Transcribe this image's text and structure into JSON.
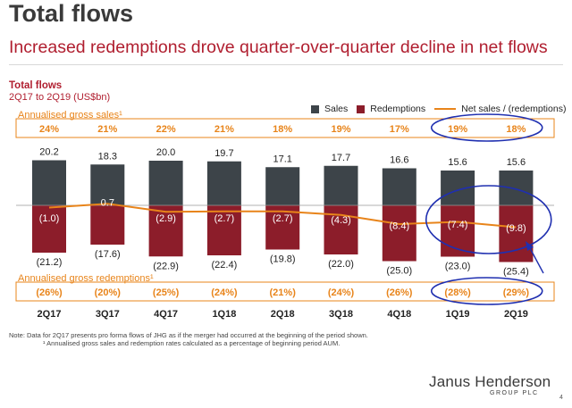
{
  "slide": {
    "title": "Total flows",
    "subtitle": "Increased redemptions drove quarter-over-quarter decline in net flows",
    "chart_title": "Total flows",
    "chart_subtitle": "2Q17 to 2Q19 (US$bn)",
    "gross_sales_label": "Annualised gross sales¹",
    "gross_redemptions_label": "Annualised gross redemptions¹",
    "note_line1": "Note:   Data for 2Q17 presents pro forma flows of JHG as if the merger had occurred at the beginning of the period shown.",
    "note_line2": "¹ Annualised gross sales and redemption rates calculated as a percentage of beginning period AUM.",
    "logo_main": "Janus Henderson",
    "logo_sub": "GROUP PLC",
    "page_number": "4"
  },
  "legend": {
    "sales": "Sales",
    "redemptions": "Redemptions",
    "net": "Net sales / (redemptions)"
  },
  "colors": {
    "sales": "#3d4449",
    "redemptions": "#8c1d2a",
    "net": "#e8841a",
    "accent": "#b01e2f",
    "highlight": "#1f2fb0"
  },
  "chart_data": {
    "type": "bar",
    "categories": [
      "2Q17",
      "3Q17",
      "4Q17",
      "1Q18",
      "2Q18",
      "3Q18",
      "4Q18",
      "1Q19",
      "2Q19"
    ],
    "series": [
      {
        "name": "Sales",
        "values": [
          20.2,
          18.3,
          20.0,
          19.7,
          17.1,
          17.7,
          16.6,
          15.6,
          15.6
        ]
      },
      {
        "name": "Redemptions",
        "values": [
          -21.2,
          -17.6,
          -22.9,
          -22.4,
          -19.8,
          -22.0,
          -25.0,
          -23.0,
          -25.4
        ]
      },
      {
        "name": "Net sales / (redemptions)",
        "values": [
          -1.0,
          0.7,
          -2.9,
          -2.7,
          -2.7,
          -4.3,
          -8.4,
          -7.4,
          -9.8
        ]
      }
    ],
    "sales_labels": [
      "20.2",
      "18.3",
      "20.0",
      "19.7",
      "17.1",
      "17.7",
      "16.6",
      "15.6",
      "15.6"
    ],
    "redemption_labels": [
      "(21.2)",
      "(17.6)",
      "(22.9)",
      "(22.4)",
      "(19.8)",
      "(22.0)",
      "(25.0)",
      "(23.0)",
      "(25.4)"
    ],
    "net_labels": [
      "(1.0)",
      "0.7",
      "(2.9)",
      "(2.7)",
      "(2.7)",
      "(4.3)",
      "(8.4)",
      "(7.4)",
      "(9.8)"
    ],
    "annualised_gross_sales": [
      "24%",
      "21%",
      "22%",
      "21%",
      "18%",
      "19%",
      "17%",
      "19%",
      "18%"
    ],
    "annualised_gross_redemptions": [
      "(26%)",
      "(20%)",
      "(25%)",
      "(24%)",
      "(21%)",
      "(24%)",
      "(26%)",
      "(28%)",
      "(29%)"
    ],
    "highlighted_categories": [
      "1Q19",
      "2Q19"
    ]
  }
}
